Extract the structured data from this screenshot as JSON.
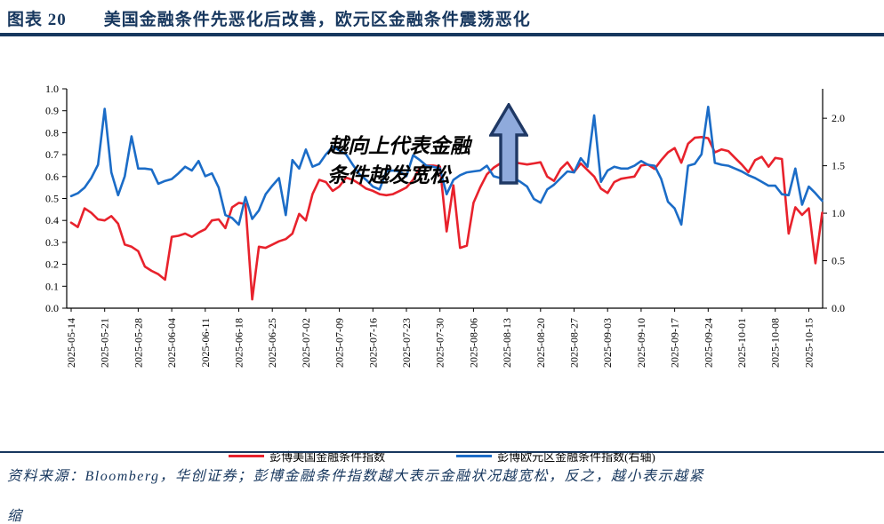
{
  "header": {
    "figure_label": "图表 20",
    "title": "美国金融条件先恶化后改善，欧元区金融条件震荡恶化"
  },
  "annotation": {
    "line1": "越向上代表金融",
    "line2": "条件越发宽松"
  },
  "footer": {
    "line1": "资料来源：Bloomberg，华创证券；彭博金融条件指数越大表示金融状况越宽松，反之，越小表示越紧",
    "line2": "缩"
  },
  "colors": {
    "navy": "#17375e",
    "red_line": "#e8222c",
    "blue_line": "#1b6cc7",
    "arrow_fill": "#8faadc",
    "arrow_border": "#1f3864",
    "axis": "#000000"
  },
  "chart_data": {
    "type": "line",
    "points_per_tick": 5,
    "x_tick_labels": [
      "2025-05-14",
      "2025-05-21",
      "2025-05-28",
      "2025-06-04",
      "2025-06-11",
      "2025-06-18",
      "2025-06-25",
      "2025-07-02",
      "2025-07-09",
      "2025-07-16",
      "2025-07-23",
      "2025-07-30",
      "2025-08-06",
      "2025-08-13",
      "2025-08-20",
      "2025-08-27",
      "2025-09-03",
      "2025-09-10",
      "2025-09-17",
      "2025-09-24",
      "2025-10-01",
      "2025-10-08",
      "2025-10-15"
    ],
    "left_axis": {
      "tick_labels": [
        "0.0",
        "0.1",
        "0.2",
        "0.3",
        "0.4",
        "0.5",
        "0.6",
        "0.7",
        "0.8",
        "0.9",
        "1.0"
      ],
      "tick_values": [
        0,
        0.1,
        0.2,
        0.3,
        0.4,
        0.5,
        0.6,
        0.7,
        0.8,
        0.9,
        1.0
      ],
      "max": 1.0
    },
    "right_axis": {
      "tick_labels": [
        "0.0",
        "0.5",
        "1.0",
        "1.5",
        "2.0"
      ],
      "tick_values": [
        0,
        0.5,
        1.0,
        1.5,
        2.0
      ],
      "max": 2.31
    },
    "series": [
      {
        "name": "彭博美国金融条件指数",
        "axis": "left",
        "color": "#e8222c",
        "values": [
          0.39,
          0.37,
          0.455,
          0.435,
          0.405,
          0.4,
          0.42,
          0.385,
          0.29,
          0.28,
          0.26,
          0.19,
          0.17,
          0.155,
          0.13,
          0.325,
          0.33,
          0.34,
          0.325,
          0.345,
          0.36,
          0.4,
          0.405,
          0.365,
          0.46,
          0.48,
          0.475,
          0.04,
          0.28,
          0.275,
          0.29,
          0.305,
          0.315,
          0.34,
          0.43,
          0.4,
          0.52,
          0.585,
          0.575,
          0.535,
          0.555,
          0.595,
          0.585,
          0.567,
          0.545,
          0.535,
          0.52,
          0.515,
          0.52,
          0.535,
          0.55,
          0.585,
          0.64,
          0.65,
          0.65,
          0.645,
          0.35,
          0.56,
          0.275,
          0.285,
          0.48,
          0.55,
          0.61,
          0.64,
          0.66,
          0.675,
          0.665,
          0.66,
          0.655,
          0.66,
          0.665,
          0.6,
          0.58,
          0.635,
          0.665,
          0.62,
          0.66,
          0.63,
          0.6,
          0.545,
          0.525,
          0.575,
          0.59,
          0.595,
          0.6,
          0.65,
          0.655,
          0.635,
          0.675,
          0.71,
          0.73,
          0.663,
          0.75,
          0.777,
          0.78,
          0.775,
          0.71,
          0.724,
          0.716,
          0.685,
          0.655,
          0.62,
          0.675,
          0.69,
          0.645,
          0.685,
          0.68,
          0.34,
          0.46,
          0.425,
          0.455,
          0.205,
          0.435
        ]
      },
      {
        "name": "彭博欧元区金融条件指数(右轴)",
        "axis": "right",
        "color": "#1b6cc7",
        "values": [
          1.18,
          1.21,
          1.27,
          1.37,
          1.51,
          2.1,
          1.43,
          1.19,
          1.39,
          1.81,
          1.47,
          1.47,
          1.46,
          1.31,
          1.34,
          1.36,
          1.42,
          1.49,
          1.45,
          1.55,
          1.39,
          1.42,
          1.27,
          0.98,
          0.95,
          0.88,
          1.17,
          0.94,
          1.03,
          1.2,
          1.29,
          1.37,
          0.98,
          1.56,
          1.47,
          1.67,
          1.49,
          1.52,
          1.62,
          1.7,
          1.66,
          1.62,
          1.51,
          1.41,
          1.35,
          1.28,
          1.25,
          1.44,
          1.45,
          1.44,
          1.39,
          1.61,
          1.56,
          1.5,
          1.49,
          1.47,
          1.2,
          1.35,
          1.4,
          1.43,
          1.44,
          1.45,
          1.5,
          1.39,
          1.37,
          1.53,
          1.37,
          1.33,
          1.28,
          1.15,
          1.11,
          1.25,
          1.3,
          1.37,
          1.44,
          1.43,
          1.58,
          1.49,
          2.03,
          1.33,
          1.45,
          1.49,
          1.47,
          1.47,
          1.5,
          1.55,
          1.51,
          1.5,
          1.36,
          1.12,
          1.05,
          0.88,
          1.5,
          1.52,
          1.62,
          2.12,
          1.53,
          1.51,
          1.5,
          1.47,
          1.44,
          1.4,
          1.37,
          1.33,
          1.29,
          1.29,
          1.2,
          1.19,
          1.47,
          1.09,
          1.28,
          1.21,
          1.13
        ]
      }
    ],
    "title": "美国金融条件先恶化后改善，欧元区金融条件震荡恶化",
    "xlabel": "",
    "ylabel_left": "",
    "ylabel_right": "",
    "left_ylim": [
      0,
      1.0
    ],
    "right_ylim": [
      0,
      2.31
    ],
    "grid": false,
    "legend_position": "bottom"
  }
}
